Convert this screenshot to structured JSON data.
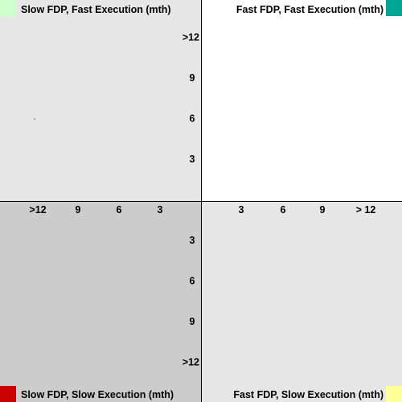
{
  "chart_data": {
    "type": "scatter",
    "quadrants": [
      {
        "id": "top-left",
        "label": "Slow FDP, Fast Execution (mth)",
        "background": "#e6e6e6",
        "swatch": "#ccffcc"
      },
      {
        "id": "top-right",
        "label": "Fast FDP, Fast Execution (mth)",
        "background": "#ffffff",
        "swatch": "#00a693"
      },
      {
        "id": "bottom-left",
        "label": "Slow FDP, Slow Execution (mth)",
        "background": "#cccccc",
        "swatch": "#cc0000"
      },
      {
        "id": "bottom-right",
        "label": "Fast FDP, Slow Execution (mth)",
        "background": "#e6e6e6",
        "swatch": "#ffff99"
      }
    ],
    "x_ticks_left": [
      "3",
      "6",
      "9",
      ">12"
    ],
    "x_ticks_right": [
      "3",
      "6",
      "9",
      "> 12"
    ],
    "y_ticks_up": [
      "3",
      "6",
      "9",
      ">12"
    ],
    "y_ticks_down": [
      "3",
      "6",
      "9",
      ">12"
    ],
    "points": [
      {
        "quadrant": "top-left",
        "fdp_months": 12,
        "execution_months": 6
      }
    ],
    "axis_color": "#000000"
  }
}
